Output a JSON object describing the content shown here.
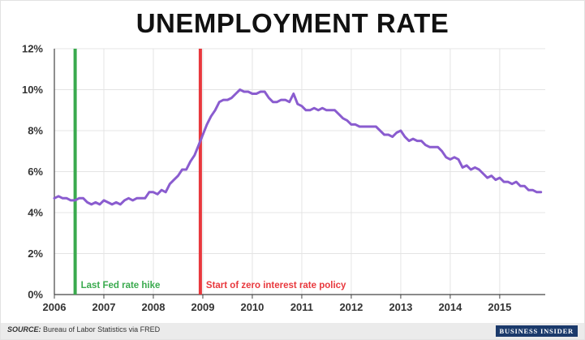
{
  "chart_data": {
    "type": "line",
    "title": "UNEMPLOYMENT RATE",
    "xlabel": "",
    "ylabel": "",
    "xlim": [
      2006,
      2015.92
    ],
    "ylim": [
      0,
      12
    ],
    "grid": true,
    "y_ticks": [
      "0%",
      "2%",
      "4%",
      "6%",
      "8%",
      "10%",
      "12%"
    ],
    "y_tick_values": [
      0,
      2,
      4,
      6,
      8,
      10,
      12
    ],
    "x_ticks": [
      "2006",
      "2007",
      "2008",
      "2009",
      "2010",
      "2011",
      "2012",
      "2013",
      "2014",
      "2015"
    ],
    "x_tick_values": [
      2006,
      2007,
      2008,
      2009,
      2010,
      2011,
      2012,
      2013,
      2014,
      2015
    ],
    "series": [
      {
        "color": "#8a5ccf",
        "start": 2006,
        "step": 0.08333,
        "values": [
          4.7,
          4.8,
          4.7,
          4.7,
          4.6,
          4.6,
          4.7,
          4.7,
          4.5,
          4.4,
          4.5,
          4.4,
          4.6,
          4.5,
          4.4,
          4.5,
          4.4,
          4.6,
          4.7,
          4.6,
          4.7,
          4.7,
          4.7,
          5.0,
          5.0,
          4.9,
          5.1,
          5.0,
          5.4,
          5.6,
          5.8,
          6.1,
          6.1,
          6.5,
          6.8,
          7.3,
          7.8,
          8.3,
          8.7,
          9.0,
          9.4,
          9.5,
          9.5,
          9.6,
          9.8,
          10.0,
          9.9,
          9.9,
          9.8,
          9.8,
          9.9,
          9.9,
          9.6,
          9.4,
          9.4,
          9.5,
          9.5,
          9.4,
          9.8,
          9.3,
          9.2,
          9.0,
          9.0,
          9.1,
          9.0,
          9.1,
          9.0,
          9.0,
          9.0,
          8.8,
          8.6,
          8.5,
          8.3,
          8.3,
          8.2,
          8.2,
          8.2,
          8.2,
          8.2,
          8.0,
          7.8,
          7.8,
          7.7,
          7.9,
          8.0,
          7.7,
          7.5,
          7.6,
          7.5,
          7.5,
          7.3,
          7.2,
          7.2,
          7.2,
          7.0,
          6.7,
          6.6,
          6.7,
          6.6,
          6.2,
          6.3,
          6.1,
          6.2,
          6.1,
          5.9,
          5.7,
          5.8,
          5.6,
          5.7,
          5.5,
          5.5,
          5.4,
          5.5,
          5.3,
          5.3,
          5.1,
          5.1,
          5.0,
          5.0
        ]
      }
    ],
    "annotations": [
      {
        "label": "Last Fed rate hike",
        "x": 2006.42,
        "color": "#3aaa4e"
      },
      {
        "label": "Start of zero interest rate policy",
        "x": 2008.95,
        "color": "#e8383d"
      }
    ],
    "source_label": "SOURCE:",
    "source_text": " Bureau of Labor Statistics via FRED",
    "brand": "BUSINESS INSIDER"
  }
}
